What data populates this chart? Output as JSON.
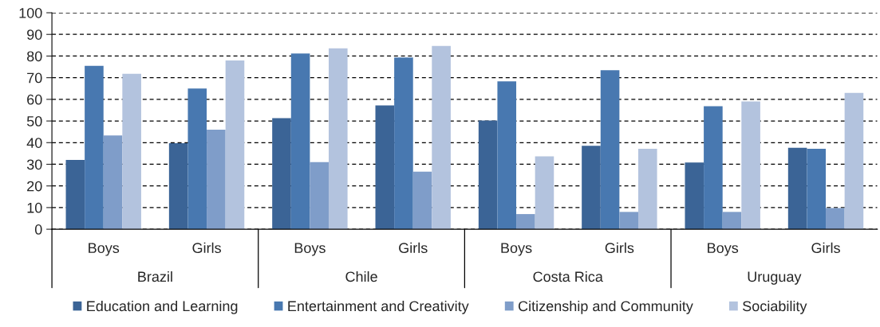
{
  "chart_data": {
    "type": "bar",
    "categories": [
      "Boys",
      "Girls",
      "Boys",
      "Girls",
      "Boys",
      "Girls",
      "Boys",
      "Girls"
    ],
    "annotations": [
      "Brazil",
      "Chile",
      "Costa Rica",
      "Uruguay"
    ],
    "series": [
      {
        "name": "Education and Learning",
        "color": "#3b6496",
        "values": [
          32,
          39.7,
          51.3,
          57.2,
          50.2,
          38.5,
          30.8,
          37.6
        ]
      },
      {
        "name": "Entertainment and Creativity",
        "color": "#4878b0",
        "values": [
          75.5,
          65,
          81.2,
          79.3,
          68.3,
          73.5,
          56.8,
          37.2
        ]
      },
      {
        "name": "Citizenship and Community",
        "color": "#7f9dc9",
        "values": [
          43.3,
          46,
          31,
          26.6,
          7,
          8,
          8,
          9.8
        ]
      },
      {
        "name": "Sociability",
        "color": "#b3c3de",
        "values": [
          71.8,
          78,
          83.6,
          84.7,
          33.7,
          37.2,
          59,
          63
        ]
      }
    ],
    "ylim": [
      0,
      100
    ],
    "yticks": [
      0,
      10,
      20,
      30,
      40,
      50,
      60,
      70,
      80,
      90,
      100
    ],
    "grid": "y",
    "legend": "bottom"
  }
}
